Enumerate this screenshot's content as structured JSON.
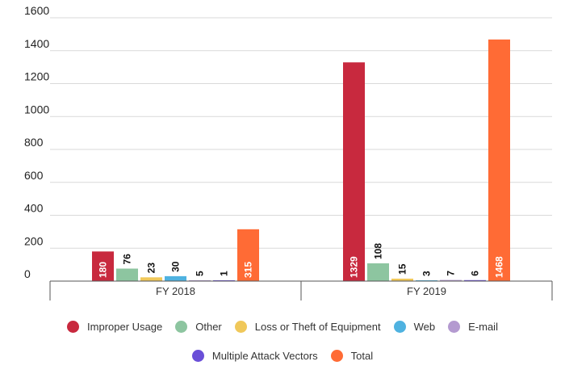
{
  "chart_data": {
    "type": "bar",
    "categories": [
      "FY 2018",
      "FY 2019"
    ],
    "series": [
      {
        "name": "Improper Usage",
        "color": "#c8293e",
        "values": [
          180,
          1329
        ]
      },
      {
        "name": "Other",
        "color": "#8dc5a0",
        "values": [
          76,
          108
        ]
      },
      {
        "name": "Loss or Theft of Equipment",
        "color": "#f0c85a",
        "values": [
          23,
          15
        ]
      },
      {
        "name": "Web",
        "color": "#4fb2e0",
        "values": [
          30,
          3
        ]
      },
      {
        "name": "E-mail",
        "color": "#b49ad0",
        "values": [
          5,
          7
        ]
      },
      {
        "name": "Multiple Attack Vectors",
        "color": "#6a4fd8",
        "values": [
          1,
          6
        ]
      },
      {
        "name": "Total",
        "color": "#ff6b35",
        "values": [
          315,
          1468
        ]
      }
    ],
    "yticks": [
      "0",
      "200",
      "400",
      "600",
      "800",
      "1000",
      "1200",
      "1400",
      "1600"
    ],
    "ylim": [
      0,
      1600
    ],
    "grid": true,
    "legend_position": "bottom",
    "data_label_position": "rotated"
  }
}
